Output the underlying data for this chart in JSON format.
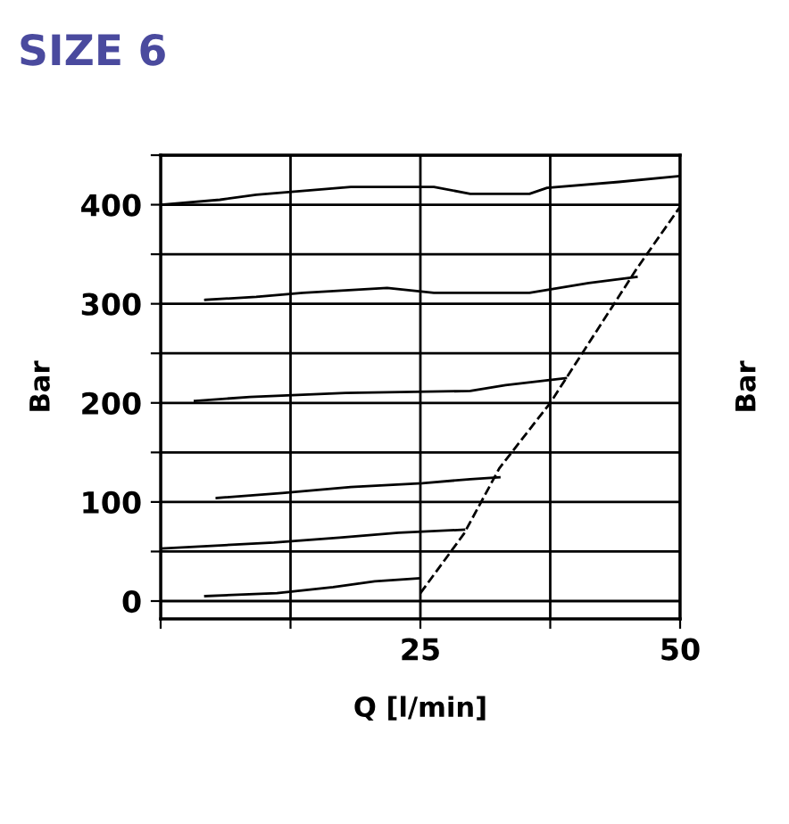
{
  "chart_data": {
    "type": "line",
    "title": "SIZE 6",
    "xlabel": "Q [l/min]",
    "ylabel": "Bar",
    "y2label": "Bar",
    "xlim": [
      0,
      50
    ],
    "ylim": [
      -18,
      450
    ],
    "xticks": [
      {
        "value": 0,
        "label": null
      },
      {
        "value": 12.5,
        "label": null
      },
      25,
      {
        "value": 37.5,
        "label": null
      },
      50
    ],
    "yticks": [
      0,
      {
        "value": 50,
        "label": null
      },
      100,
      {
        "value": 150,
        "label": null
      },
      200,
      {
        "value": 250,
        "label": null
      },
      300,
      {
        "value": 350,
        "label": null
      },
      400,
      {
        "value": 450,
        "label": null
      }
    ],
    "grid": true,
    "series": [
      {
        "color": "#000000",
        "x": [
          0,
          5.7,
          9.2,
          18.3,
          26.3,
          29.8,
          35.5,
          37.2,
          44.1,
          50
        ],
        "values": [
          400,
          405,
          410,
          418,
          418,
          411,
          411,
          417,
          423,
          429
        ]
      },
      {
        "color": "#000000",
        "x": [
          4.3,
          9.2,
          13.7,
          21.8,
          26.3,
          35.5,
          41.2,
          45.8
        ],
        "values": [
          304,
          307,
          311,
          316,
          311,
          311,
          321,
          327
        ]
      },
      {
        "color": "#000000",
        "x": [
          3.3,
          8.6,
          17.8,
          29.8,
          33.2,
          39
        ],
        "values": [
          202,
          206,
          210,
          212,
          218,
          225
        ]
      },
      {
        "color": "#000000",
        "x": [
          5.4,
          11.7,
          18.3,
          25.2,
          29.8,
          32.6
        ],
        "values": [
          104,
          109,
          115,
          119,
          123,
          125
        ]
      },
      {
        "color": "#000000",
        "x": [
          0,
          10.9,
          17.2,
          22.9,
          29.2
        ],
        "values": [
          53,
          59,
          64,
          69,
          72
        ]
      },
      {
        "color": "#000000",
        "x": [
          4.3,
          11.2,
          16.6,
          20.6,
          24.9
        ],
        "values": [
          5,
          8,
          14,
          20,
          23
        ]
      },
      {
        "color": "#000000",
        "line_style": "dashed",
        "x": [
          25,
          29.2,
          32.6,
          37.5,
          45.8,
          50
        ],
        "values": [
          8,
          68,
          134,
          200,
          335,
          398
        ]
      }
    ]
  }
}
